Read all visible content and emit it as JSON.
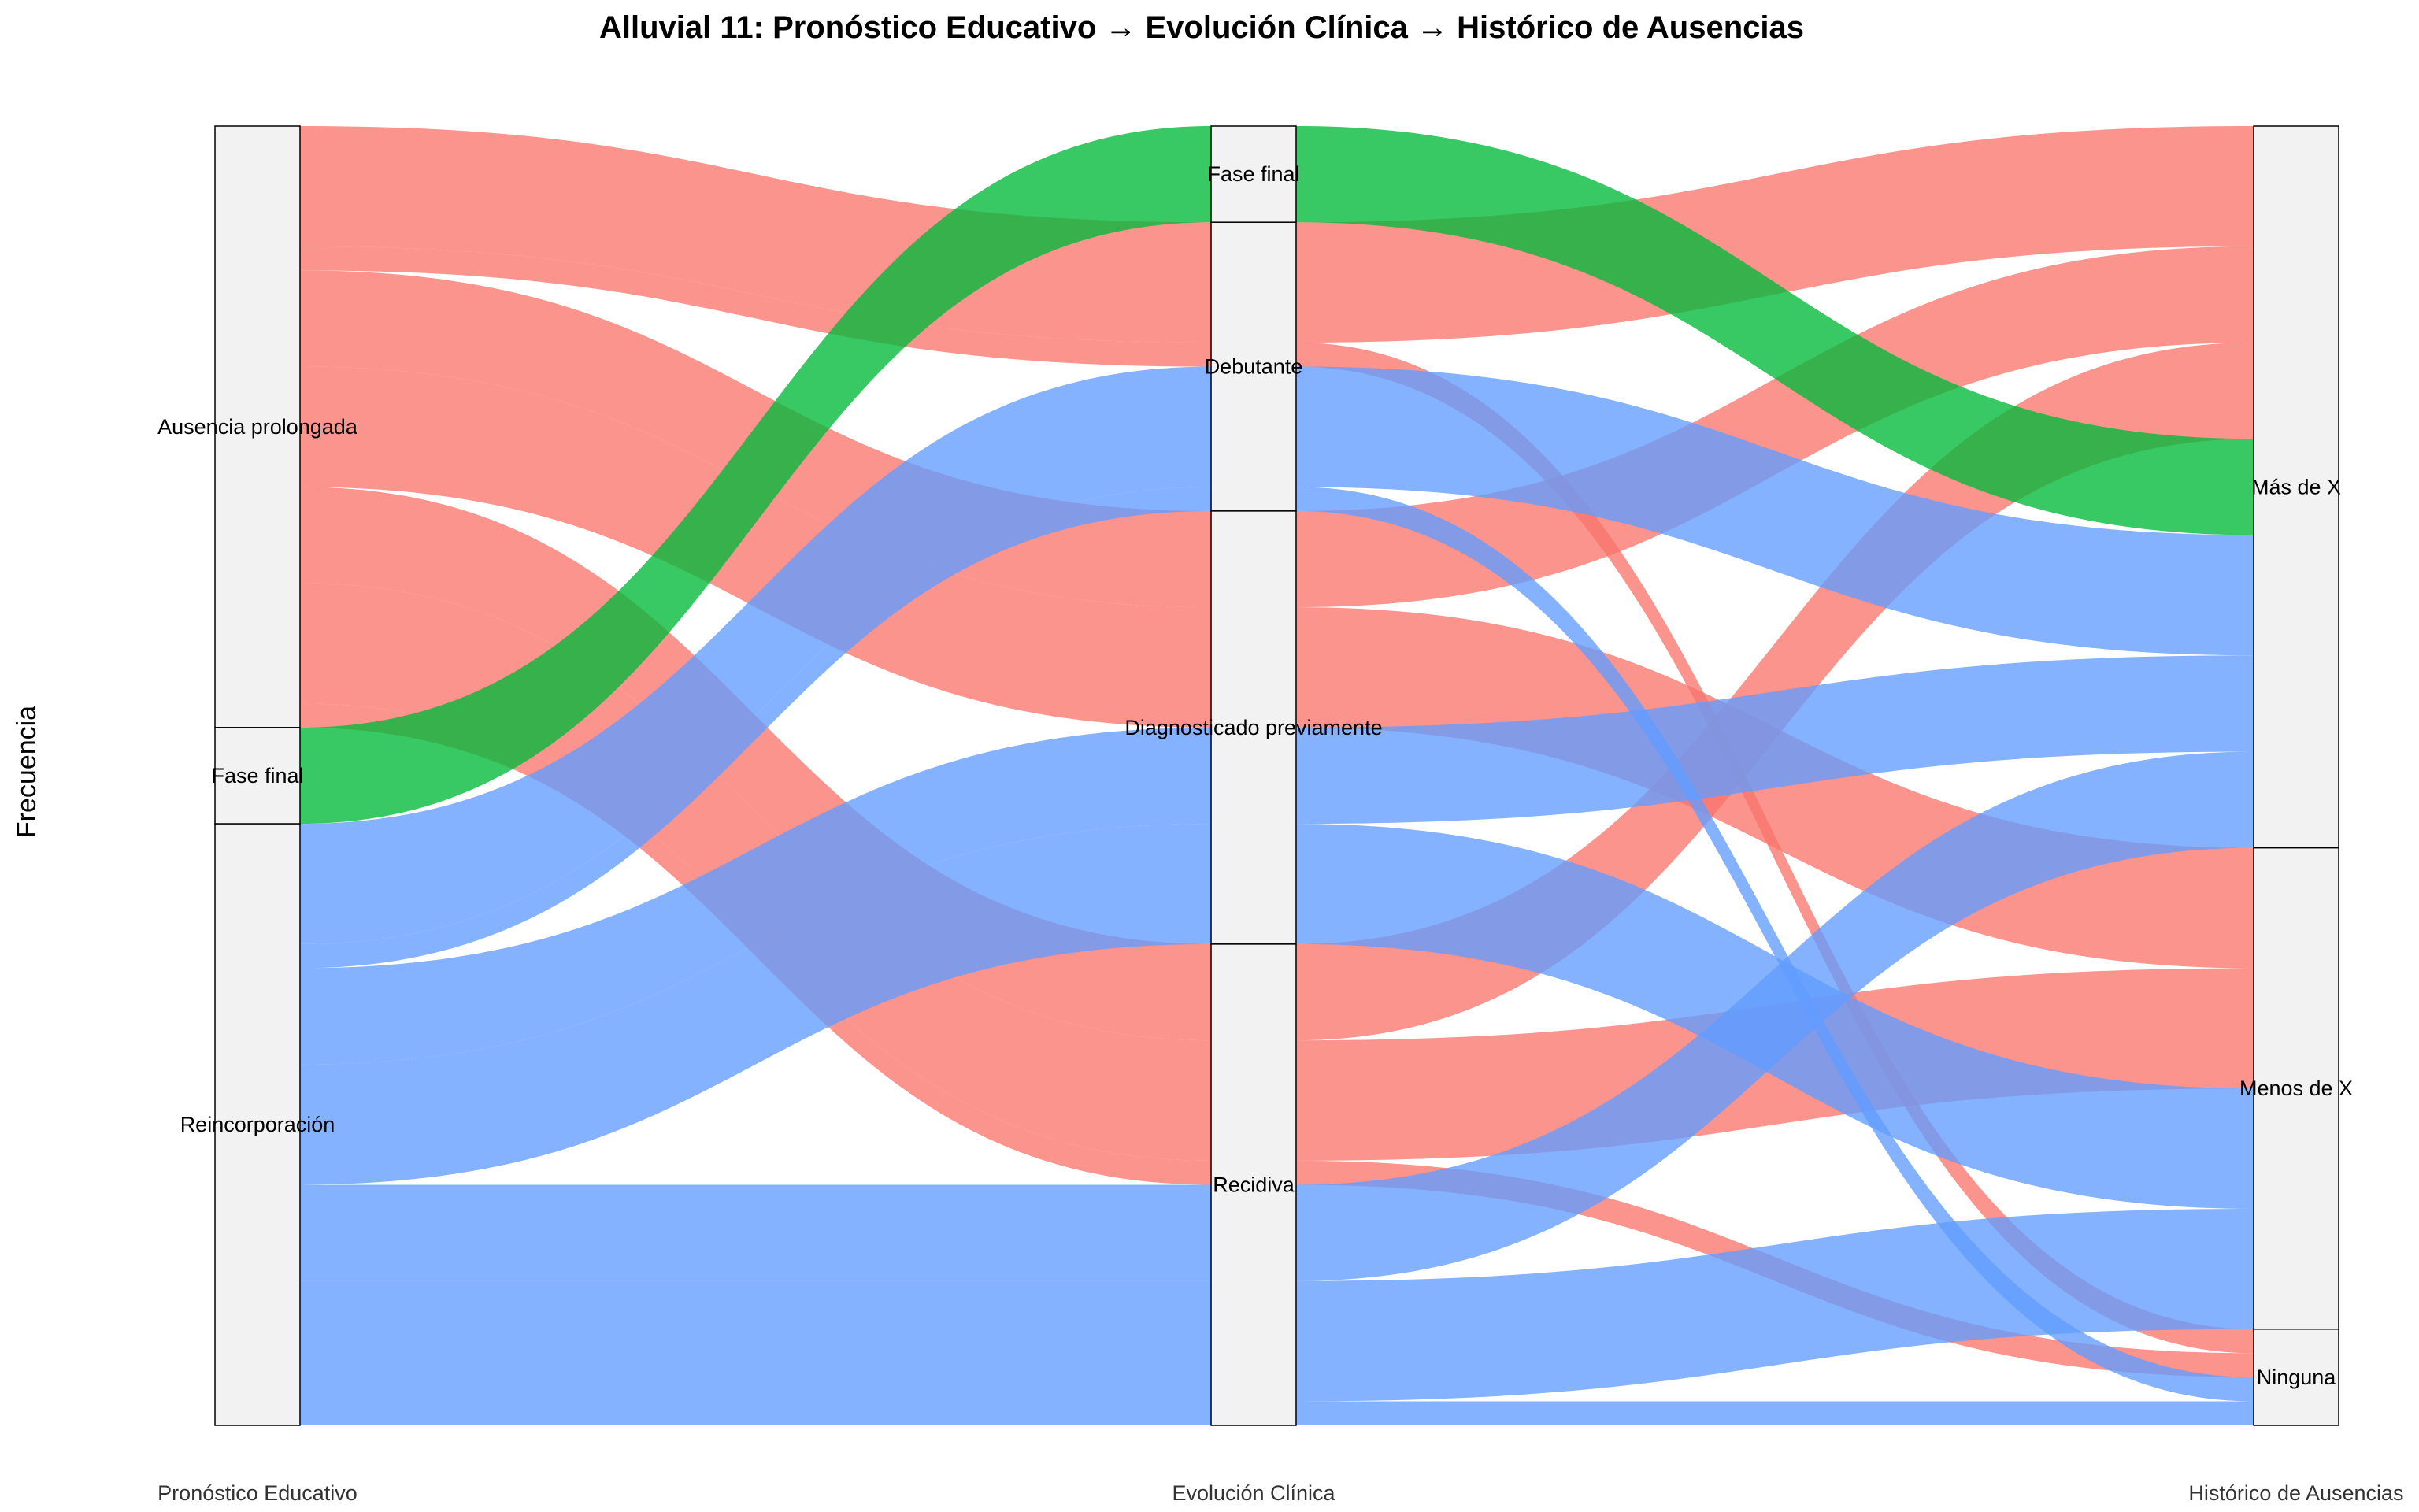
{
  "chart_data": {
    "type": "alluvial",
    "title": "Alluvial 11: Pronóstico Educativo → Evolución Clínica → Histórico de Ausencias",
    "ylabel": "Frecuencia",
    "axes": [
      "Pronóstico Educativo",
      "Evolución Clínica",
      "Histórico de Ausencias"
    ],
    "strata": [
      [
        "Ausencia prolongada",
        "Fase final",
        "Reincorporación"
      ],
      [
        "Fase final",
        "Debutante",
        "Diagnosticado previamente",
        "Recidiva"
      ],
      [
        "Más de X",
        "Menos de X",
        "Ninguna"
      ]
    ],
    "fill_colors": {
      "Ausencia prolongada": "#F8766D",
      "Fase final": "#00BA38",
      "Reincorporación": "#619CFF"
    },
    "flows": [
      {
        "path": [
          "Ausencia prolongada",
          "Debutante",
          "Más de X"
        ],
        "value": 5
      },
      {
        "path": [
          "Ausencia prolongada",
          "Debutante",
          "Ninguna"
        ],
        "value": 1
      },
      {
        "path": [
          "Ausencia prolongada",
          "Diagnosticado previamente",
          "Más de X"
        ],
        "value": 4
      },
      {
        "path": [
          "Ausencia prolongada",
          "Diagnosticado previamente",
          "Menos de X"
        ],
        "value": 5
      },
      {
        "path": [
          "Ausencia prolongada",
          "Recidiva",
          "Más de X"
        ],
        "value": 4
      },
      {
        "path": [
          "Ausencia prolongada",
          "Recidiva",
          "Menos de X"
        ],
        "value": 5
      },
      {
        "path": [
          "Ausencia prolongada",
          "Recidiva",
          "Ninguna"
        ],
        "value": 1
      },
      {
        "path": [
          "Fase final",
          "Fase final",
          "Más de X"
        ],
        "value": 4
      },
      {
        "path": [
          "Reincorporación",
          "Debutante",
          "Más de X"
        ],
        "value": 5
      },
      {
        "path": [
          "Reincorporación",
          "Debutante",
          "Ninguna"
        ],
        "value": 1
      },
      {
        "path": [
          "Reincorporación",
          "Diagnosticado previamente",
          "Más de X"
        ],
        "value": 4
      },
      {
        "path": [
          "Reincorporación",
          "Diagnosticado previamente",
          "Menos de X"
        ],
        "value": 5
      },
      {
        "path": [
          "Reincorporación",
          "Recidiva",
          "Más de X"
        ],
        "value": 4
      },
      {
        "path": [
          "Reincorporación",
          "Recidiva",
          "Menos de X"
        ],
        "value": 5
      },
      {
        "path": [
          "Reincorporación",
          "Recidiva",
          "Ninguna"
        ],
        "value": 1
      }
    ]
  }
}
